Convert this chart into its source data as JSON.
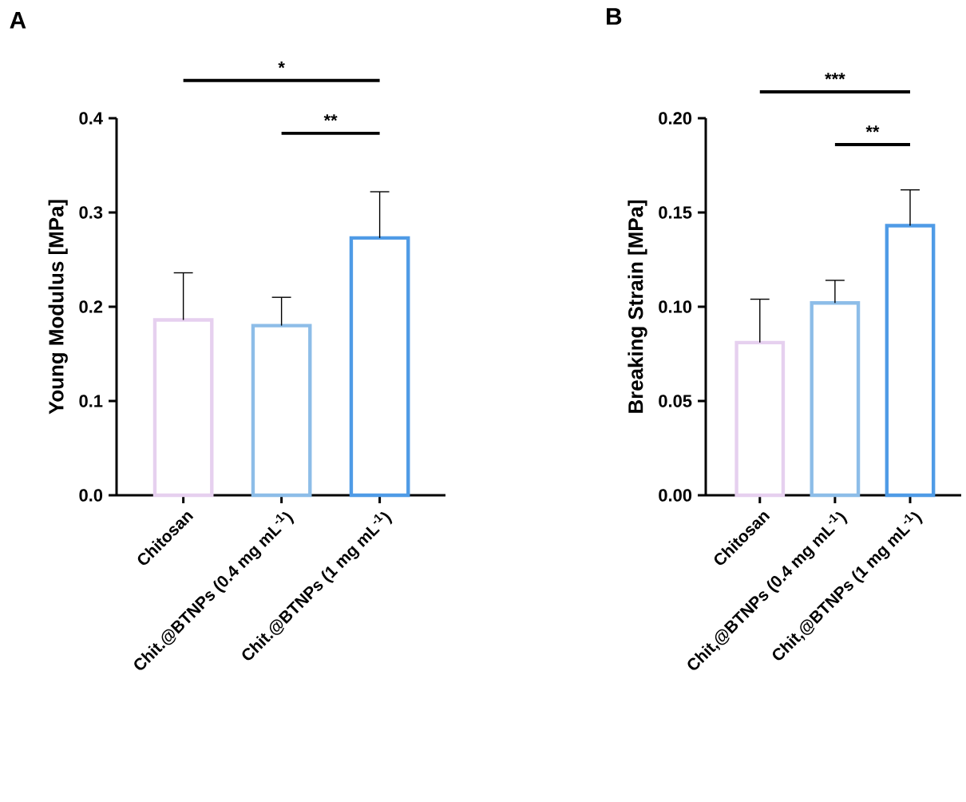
{
  "chart_data": [
    {
      "type": "bar",
      "title": "A",
      "ylabel": "Young Modulus [MPa]",
      "categories": [
        "Chitosan",
        "Chit.@BTNPs (0.4 mg mL$^{-1}$)",
        "Chit.@BTNPs (1 mg mL$^{-1}$)"
      ],
      "values": [
        0.186,
        0.18,
        0.273
      ],
      "errors": [
        [
          0.186,
          0.236
        ],
        [
          0.18,
          0.21
        ],
        [
          0.273,
          0.322
        ]
      ],
      "colors": [
        "#e6d0ef",
        "#8dbde8",
        "#4f9be6"
      ],
      "ylim": [
        0,
        0.4
      ],
      "yticks": [
        {
          "value": 0,
          "label": "0.0"
        },
        {
          "value": 0.1,
          "label": "0.1"
        },
        {
          "value": 0.2,
          "label": "0.2"
        },
        {
          "value": 0.3,
          "label": "0.3"
        },
        {
          "value": 0.4,
          "label": "0.4"
        }
      ],
      "annotations": [
        "*",
        "**"
      ]
    },
    {
      "type": "bar",
      "title": "B",
      "ylabel": "Breaking Strain [MPa]",
      "categories": [
        "Chitosan",
        "Chit,@BTNPs (0.4 mg mL$^{-1}$)",
        "Chit,@BTNPs (1 mg mL$^{-1}$)"
      ],
      "values": [
        0.081,
        0.102,
        0.143
      ],
      "errors": [
        [
          0.081,
          0.104
        ],
        [
          0.102,
          0.114
        ],
        [
          0.143,
          0.162
        ]
      ],
      "colors": [
        "#e6d0ef",
        "#8dbde8",
        "#4f9be6"
      ],
      "ylim": [
        0,
        0.2
      ],
      "yticks": [
        {
          "value": 0,
          "label": "0.00"
        },
        {
          "value": 0.05,
          "label": "0.05"
        },
        {
          "value": 0.1,
          "label": "0.10"
        },
        {
          "value": 0.15,
          "label": "0.15"
        },
        {
          "value": 0.2,
          "label": "0.20"
        }
      ],
      "annotations": [
        "***",
        "**"
      ]
    }
  ]
}
